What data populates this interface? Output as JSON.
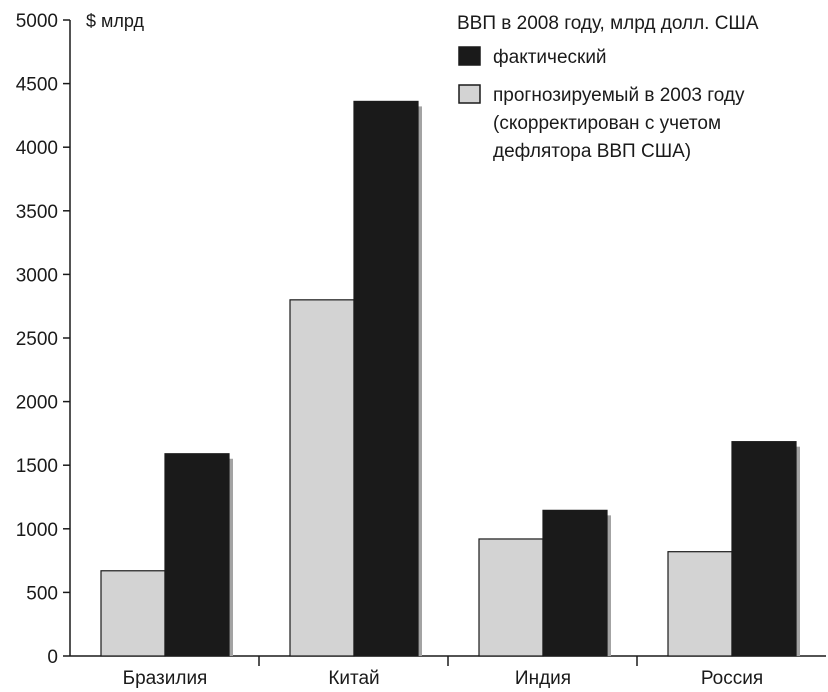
{
  "chart_data": {
    "type": "bar",
    "title": "ВВП в 2008 году, млрд долл. США",
    "ylabel": "$ млрд",
    "xlabel": "",
    "categories": [
      "Бразилия",
      "Китай",
      "Индия",
      "Россия"
    ],
    "series": [
      {
        "name": "прогнозируемый в 2003 году (скорректирован с учетом дефлятора ВВП США)",
        "name_lines": [
          "прогнозируемый в 2003 году",
          "(скорректирован с учетом",
          "дефлятора ВВП США)"
        ],
        "values": [
          670,
          2800,
          920,
          820
        ],
        "color": "#d3d3d3"
      },
      {
        "name": "фактический",
        "name_lines": [
          "фактический"
        ],
        "values": [
          1590,
          4360,
          1145,
          1685
        ],
        "color": "#1a1a1a"
      }
    ],
    "ylim": [
      0,
      5000
    ],
    "yticks": [
      0,
      500,
      1000,
      1500,
      2000,
      2500,
      3000,
      3500,
      4000,
      4500,
      5000
    ],
    "legend_order": [
      1,
      0
    ],
    "legend_position": "top-right",
    "grid": false
  }
}
